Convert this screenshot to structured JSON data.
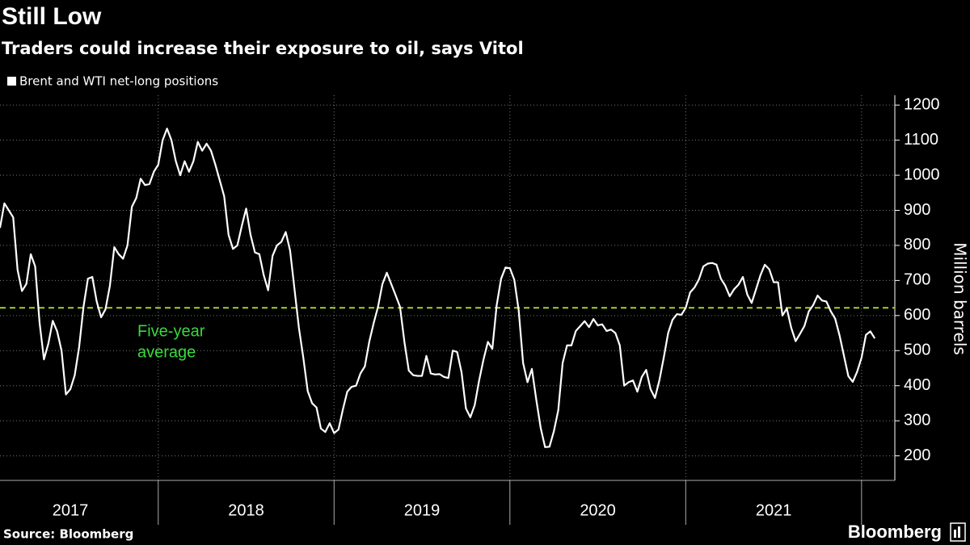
{
  "chart_data": {
    "type": "line",
    "title": "Still Low",
    "subtitle": "Traders could increase their exposure to oil, says Vitol",
    "y_label": "Million barrels",
    "x": [
      2017.1,
      2017.125,
      2017.15,
      2017.175,
      2017.2,
      2017.225,
      2017.25,
      2017.275,
      2017.3,
      2017.325,
      2017.35,
      2017.375,
      2017.4,
      2017.425,
      2017.45,
      2017.475,
      2017.5,
      2017.525,
      2017.55,
      2017.575,
      2017.6,
      2017.625,
      2017.65,
      2017.675,
      2017.7,
      2017.725,
      2017.75,
      2017.775,
      2017.8,
      2017.825,
      2017.85,
      2017.875,
      2017.9,
      2017.925,
      2017.95,
      2017.975,
      2018,
      2018.025,
      2018.05,
      2018.075,
      2018.1,
      2018.125,
      2018.15,
      2018.175,
      2018.2,
      2018.225,
      2018.25,
      2018.275,
      2018.3,
      2018.325,
      2018.35,
      2018.375,
      2018.4,
      2018.425,
      2018.45,
      2018.475,
      2018.5,
      2018.525,
      2018.55,
      2018.575,
      2018.6,
      2018.625,
      2018.65,
      2018.675,
      2018.7,
      2018.725,
      2018.75,
      2018.775,
      2018.8,
      2018.825,
      2018.85,
      2018.875,
      2018.9,
      2018.925,
      2018.95,
      2018.975,
      2019,
      2019.025,
      2019.05,
      2019.075,
      2019.1,
      2019.125,
      2019.15,
      2019.175,
      2019.2,
      2019.225,
      2019.25,
      2019.275,
      2019.3,
      2019.325,
      2019.35,
      2019.375,
      2019.4,
      2019.425,
      2019.45,
      2019.475,
      2019.5,
      2019.525,
      2019.55,
      2019.575,
      2019.6,
      2019.625,
      2019.65,
      2019.675,
      2019.7,
      2019.725,
      2019.75,
      2019.775,
      2019.8,
      2019.825,
      2019.85,
      2019.875,
      2019.9,
      2019.925,
      2019.95,
      2019.975,
      2020,
      2020.025,
      2020.05,
      2020.075,
      2020.1,
      2020.125,
      2020.15,
      2020.175,
      2020.2,
      2020.225,
      2020.25,
      2020.275,
      2020.3,
      2020.325,
      2020.35,
      2020.375,
      2020.4,
      2020.425,
      2020.45,
      2020.475,
      2020.5,
      2020.525,
      2020.55,
      2020.575,
      2020.6,
      2020.625,
      2020.65,
      2020.675,
      2020.7,
      2020.725,
      2020.75,
      2020.775,
      2020.8,
      2020.825,
      2020.85,
      2020.875,
      2020.9,
      2020.925,
      2020.95,
      2020.975,
      2021,
      2021.025,
      2021.05,
      2021.075,
      2021.1,
      2021.125,
      2021.15,
      2021.175,
      2021.2,
      2021.225,
      2021.25,
      2021.275,
      2021.3,
      2021.325,
      2021.35,
      2021.375,
      2021.4,
      2021.425,
      2021.45,
      2021.475,
      2021.5,
      2021.525,
      2021.55,
      2021.575,
      2021.6,
      2021.625,
      2021.65,
      2021.675,
      2021.7,
      2021.725,
      2021.75,
      2021.775,
      2021.8,
      2021.825,
      2021.85,
      2021.875,
      2021.9,
      2021.925,
      2021.95,
      2021.975,
      2022,
      2022.025,
      2022.05,
      2022.075
    ],
    "series": [
      {
        "name": "Brent and WTI net-long positions",
        "color": "#ffffff",
        "values": [
          850,
          920,
          900,
          880,
          730,
          670,
          690,
          775,
          740,
          580,
          475,
          520,
          585,
          555,
          500,
          375,
          390,
          430,
          510,
          625,
          705,
          710,
          640,
          595,
          618,
          685,
          795,
          775,
          762,
          800,
          910,
          935,
          990,
          972,
          975,
          1010,
          1030,
          1100,
          1133,
          1100,
          1040,
          1000,
          1040,
          1010,
          1040,
          1095,
          1070,
          1090,
          1070,
          1030,
          985,
          940,
          830,
          790,
          800,
          855,
          905,
          830,
          780,
          775,
          715,
          672,
          770,
          800,
          810,
          838,
          785,
          675,
          565,
          480,
          385,
          350,
          338,
          278,
          268,
          293,
          265,
          275,
          332,
          383,
          397,
          400,
          435,
          455,
          525,
          578,
          625,
          690,
          722,
          690,
          658,
          625,
          525,
          443,
          430,
          428,
          428,
          485,
          435,
          432,
          433,
          425,
          422,
          500,
          496,
          438,
          335,
          310,
          345,
          415,
          475,
          525,
          505,
          630,
          705,
          737,
          735,
          702,
          615,
          465,
          410,
          448,
          360,
          280,
          225,
          226,
          270,
          330,
          465,
          515,
          515,
          556,
          570,
          584,
          567,
          590,
          572,
          575,
          556,
          560,
          550,
          515,
          400,
          410,
          415,
          383,
          425,
          445,
          390,
          365,
          415,
          480,
          550,
          588,
          604,
          602,
          622,
          666,
          680,
          703,
          740,
          748,
          750,
          745,
          705,
          685,
          655,
          675,
          688,
          710,
          660,
          636,
          675,
          715,
          745,
          732,
          695,
          695,
          600,
          620,
          565,
          527,
          548,
          570,
          612,
          630,
          657,
          643,
          640,
          612,
          591,
          543,
          485,
          427,
          411,
          440,
          480,
          545,
          555,
          535
        ]
      }
    ],
    "average": {
      "value": 622,
      "label_lines": [
        "Five-year",
        "average"
      ],
      "color": "#a6d12a",
      "label_color": "#39d93d"
    },
    "xlim": [
      2017.1,
      2022.18
    ],
    "xticks": [
      2018,
      2019,
      2020,
      2021,
      2022
    ],
    "xlabels": [
      {
        "value": 2017.5,
        "label": "2017"
      },
      {
        "value": 2018.5,
        "label": "2018"
      },
      {
        "value": 2019.5,
        "label": "2019"
      },
      {
        "value": 2020.5,
        "label": "2020"
      },
      {
        "value": 2021.5,
        "label": "2021"
      }
    ],
    "ylim": [
      130,
      1228
    ],
    "yticks": [
      200,
      300,
      400,
      500,
      600,
      700,
      800,
      900,
      1000,
      1100,
      1200
    ],
    "grid": true
  },
  "source": "Source: Bloomberg",
  "brand": "Bloomberg"
}
